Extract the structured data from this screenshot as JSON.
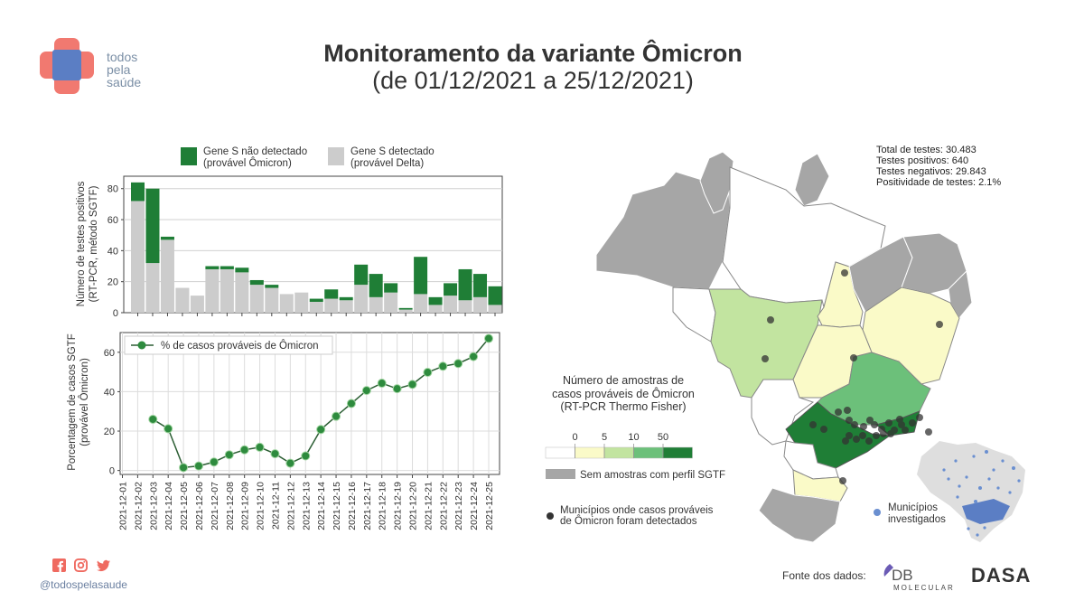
{
  "header": {
    "logo_text": [
      "todos",
      "pela",
      "saúde"
    ],
    "title": "Monitoramento da variante Ômicron",
    "subtitle": "(de 01/12/2021 a 25/12/2021)"
  },
  "stats": {
    "total": "Total de testes: 30.483",
    "positive": "Testes positivos: 640",
    "negative": "Testes negativos: 29.843",
    "positivity": "Positividade de testes: 2.1%"
  },
  "map": {
    "legend_title": [
      "Número de amostras de",
      "casos prováveis de Ômicron",
      "(RT-PCR Thermo Fisher)"
    ],
    "scale_ticks": [
      "0",
      "5",
      "10",
      "50"
    ],
    "scale_colors": [
      "#ffffff",
      "#fafac8",
      "#c2e4a0",
      "#6cc07a",
      "#1f7e36"
    ],
    "no_samples_label": "Sem amostras com perfil SGTF",
    "no_samples_color": "#a6a6a6",
    "detected_label": [
      "Municípios onde casos prováveis",
      "de Ômicron foram detectados"
    ],
    "investigated_label": [
      "Municípios",
      "investigados"
    ],
    "investigated_color": "#6a8fd0"
  },
  "footer": {
    "handle": "@todospelasaude",
    "social_icons": [
      "facebook-icon",
      "instagram-icon",
      "twitter-icon"
    ],
    "source_label": "Fonte dos dados:",
    "sources": [
      "DB Molecular",
      "DASA"
    ],
    "db_text": "DB",
    "db_sub": "MOLECULAR",
    "dasa_text": "DASA"
  },
  "colors": {
    "omicron_green": "#1f7e36",
    "delta_gray": "#cccccc",
    "brand_red": "#ef6a60",
    "brand_blue": "#5b7ec4"
  },
  "chart_data": [
    {
      "type": "bar",
      "stacked": true,
      "title": "",
      "ylabel": "Número de testes positivos (RT-PCR, método SGTF)",
      "xlabel": "",
      "ylim": [
        0,
        88
      ],
      "yticks": [
        0,
        20,
        40,
        60,
        80
      ],
      "grid": true,
      "legend_position": "top",
      "categories": [
        "2021-12-01",
        "2021-12-02",
        "2021-12-03",
        "2021-12-04",
        "2021-12-05",
        "2021-12-06",
        "2021-12-07",
        "2021-12-08",
        "2021-12-09",
        "2021-12-10",
        "2021-12-11",
        "2021-12-12",
        "2021-12-13",
        "2021-12-14",
        "2021-12-15",
        "2021-12-16",
        "2021-12-17",
        "2021-12-18",
        "2021-12-19",
        "2021-12-20",
        "2021-12-21",
        "2021-12-22",
        "2021-12-23",
        "2021-12-24",
        "2021-12-25"
      ],
      "series": [
        {
          "name": "Gene S detectado (provável Delta)",
          "color": "#cccccc",
          "values": [
            72,
            32,
            47,
            16,
            11,
            28,
            28,
            26,
            18,
            16,
            12,
            13,
            7,
            9,
            8,
            18,
            10,
            13,
            2,
            12,
            5,
            11,
            8,
            10,
            5
          ]
        },
        {
          "name": "Gene S não detectado (provável Ômicron)",
          "color": "#1f7e36",
          "values": [
            12,
            48,
            2,
            0,
            0,
            2,
            2,
            3,
            3,
            2,
            0,
            0,
            2,
            6,
            2,
            13,
            15,
            6,
            1,
            24,
            5,
            8,
            20,
            15,
            12
          ]
        }
      ],
      "legend": [
        "Gene S não detectado\n(provável Ômicron)",
        "Gene S detectado\n(provável Delta)"
      ]
    },
    {
      "type": "line",
      "title": "",
      "ylabel": "Porcentagem de casos SGTF (provável Ômicron)",
      "xlabel": "",
      "ylim": [
        -1,
        70
      ],
      "yticks": [
        0,
        20,
        40,
        60
      ],
      "grid": true,
      "legend_position": "upper left",
      "x": [
        "2021-12-01",
        "2021-12-02",
        "2021-12-03",
        "2021-12-04",
        "2021-12-05",
        "2021-12-06",
        "2021-12-07",
        "2021-12-08",
        "2021-12-09",
        "2021-12-10",
        "2021-12-11",
        "2021-12-12",
        "2021-12-13",
        "2021-12-14",
        "2021-12-15",
        "2021-12-16",
        "2021-12-17",
        "2021-12-18",
        "2021-12-19",
        "2021-12-20",
        "2021-12-21",
        "2021-12-22",
        "2021-12-23",
        "2021-12-24",
        "2021-12-25"
      ],
      "series": [
        {
          "name": "% de casos prováveis de Ômicron",
          "color": "#2e8b3e",
          "values": [
            null,
            null,
            26,
            21.2,
            1.5,
            2.3,
            4.3,
            8,
            10.5,
            11.8,
            8.5,
            3.7,
            7.4,
            20.8,
            27.5,
            34,
            40.6,
            44.3,
            41.5,
            43.7,
            49.8,
            52.9,
            54.3,
            57.8,
            67
          ]
        }
      ]
    }
  ]
}
